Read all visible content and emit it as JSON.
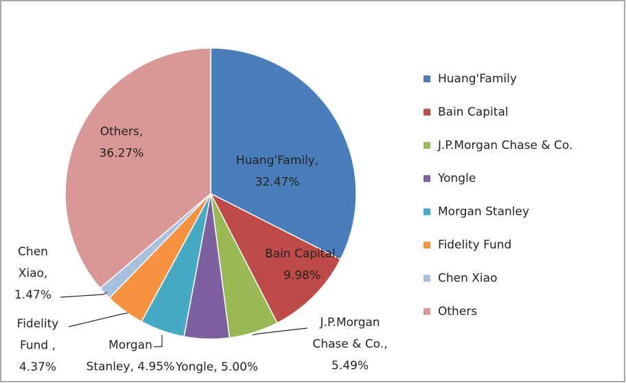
{
  "chart_data": {
    "type": "pie",
    "categories": [
      "Huang'Family",
      "Bain Capital",
      "J.P.Morgan Chase & Co.",
      "Yongle",
      "Morgan Stanley",
      "Fidelity Fund",
      "Chen Xiao",
      "Others"
    ],
    "values": [
      32.47,
      9.98,
      5.49,
      5.0,
      4.95,
      4.37,
      1.47,
      36.27
    ],
    "value_labels": [
      [
        "Huang'Family,",
        "32.47%"
      ],
      [
        "Bain Capital,",
        "9.98%"
      ],
      [
        "J.P.Morgan",
        "Chase & Co.,",
        "5.49%"
      ],
      [
        "Yongle, 5.00%"
      ],
      [
        "Morgan",
        "Stanley, 4.95%"
      ],
      [
        "Fidelity",
        "Fund ,",
        "4.37%"
      ],
      [
        "Chen",
        "Xiao,",
        "1.47%"
      ],
      [
        "Others,",
        "36.27%"
      ]
    ],
    "colors": [
      "#4a7ebb",
      "#be4b48",
      "#98b954",
      "#7d60a0",
      "#46aac5",
      "#f69240",
      "#a7c0de",
      "#d99795"
    ],
    "legend": "right"
  }
}
